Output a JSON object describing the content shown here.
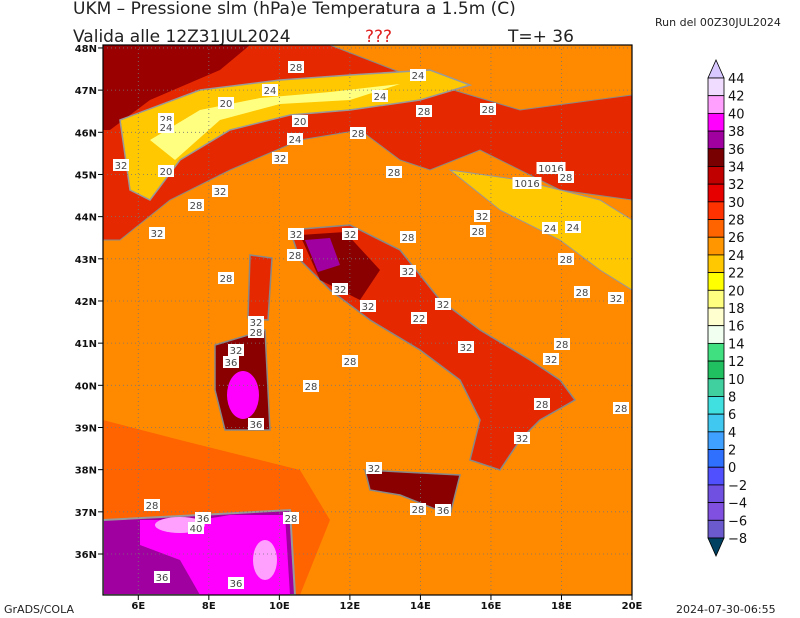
{
  "header": {
    "title": "UKM – Pressione slm (hPa)e Temperatura a 1.5m (C)",
    "valid": "Valida alle 12Z31JUL2024",
    "flag": "???",
    "step": "T=+ 36",
    "run": "Run del 00Z30JUL2024"
  },
  "map": {
    "lat_labels": [
      "36N",
      "37N",
      "38N",
      "39N",
      "40N",
      "41N",
      "42N",
      "43N",
      "44N",
      "45N",
      "46N",
      "47N",
      "48N"
    ],
    "lon_labels": [
      "6E",
      "8E",
      "10E",
      "12E",
      "14E",
      "16E",
      "18E",
      "20E"
    ],
    "contour_labels": [
      "28",
      "24",
      "24",
      "24",
      "20",
      "20",
      "28",
      "28",
      "28",
      "24",
      "28",
      "24",
      "32",
      "32",
      "20",
      "28",
      "1016",
      "1016",
      "28",
      "32",
      "28",
      "32",
      "32",
      "28",
      "24",
      "24",
      "32",
      "32",
      "28",
      "28",
      "28",
      "32",
      "28",
      "32",
      "28",
      "32",
      "32",
      "32",
      "32",
      "22",
      "28",
      "32",
      "32",
      "28",
      "36",
      "28",
      "32",
      "28",
      "28",
      "28",
      "36",
      "32",
      "32",
      "28",
      "28",
      "36",
      "36",
      "28",
      "40",
      "36",
      "36"
    ]
  },
  "colorbar": {
    "labels": [
      "44",
      "42",
      "40",
      "38",
      "36",
      "34",
      "32",
      "30",
      "28",
      "26",
      "24",
      "22",
      "20",
      "18",
      "16",
      "14",
      "12",
      "10",
      "8",
      "6",
      "4",
      "2",
      "0",
      "−2",
      "−4",
      "−6",
      "−8"
    ],
    "colors": [
      "#d8c8ff",
      "#f0dcff",
      "#ffa0ff",
      "#ff00ff",
      "#a000a0",
      "#780000",
      "#c00000",
      "#e60000",
      "#ff3200",
      "#ff6400",
      "#ff9600",
      "#ffc800",
      "#ffff00",
      "#ffff80",
      "#ffffd0",
      "#f0fff0",
      "#40e080",
      "#20c060",
      "#40d0a0",
      "#40e0e0",
      "#40c8f0",
      "#40a0ff",
      "#3070ff",
      "#5050ff",
      "#7050e0",
      "#8050e0",
      "#6a5acd",
      "#004060"
    ]
  },
  "footer": {
    "left": "GrADS/COLA",
    "right": "2024-07-30-06:55"
  }
}
